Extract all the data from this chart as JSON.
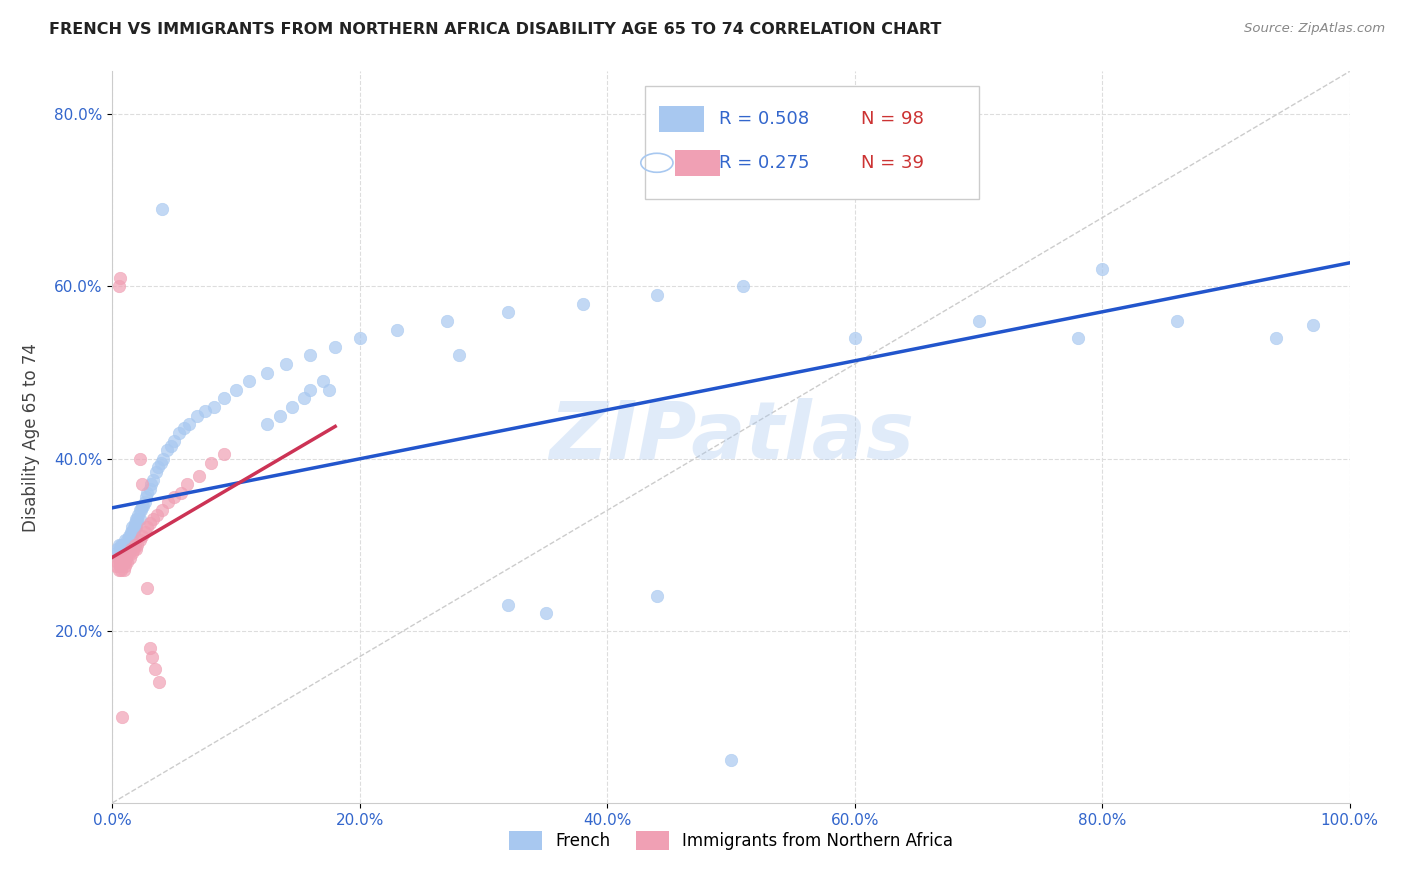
{
  "title": "FRENCH VS IMMIGRANTS FROM NORTHERN AFRICA DISABILITY AGE 65 TO 74 CORRELATION CHART",
  "source": "Source: ZipAtlas.com",
  "ylabel": "Disability Age 65 to 74",
  "xlim": [
    0,
    1.0
  ],
  "ylim": [
    0,
    0.85
  ],
  "xticks": [
    0.0,
    0.2,
    0.4,
    0.6,
    0.8,
    1.0
  ],
  "xticklabels": [
    "0.0%",
    "20.0%",
    "40.0%",
    "60.0%",
    "80.0%",
    "100.0%"
  ],
  "yticks": [
    0.2,
    0.4,
    0.6,
    0.8
  ],
  "yticklabels": [
    "20.0%",
    "40.0%",
    "60.0%",
    "80.0%"
  ],
  "legend_labels": [
    "French",
    "Immigrants from Northern Africa"
  ],
  "R_french": 0.508,
  "N_french": 98,
  "R_immig": 0.275,
  "N_immig": 39,
  "french_color": "#a8c8f0",
  "immig_color": "#f0a0b4",
  "french_line_color": "#2255cc",
  "immig_line_color": "#cc3355",
  "diagonal_color": "#cccccc",
  "background_color": "#ffffff",
  "grid_color": "#dddddd",
  "watermark": "ZIPatlas",
  "tick_color": "#3366cc",
  "french_x": [
    0.003,
    0.004,
    0.005,
    0.005,
    0.006,
    0.006,
    0.006,
    0.007,
    0.007,
    0.007,
    0.007,
    0.008,
    0.008,
    0.008,
    0.008,
    0.009,
    0.009,
    0.009,
    0.009,
    0.009,
    0.01,
    0.01,
    0.01,
    0.01,
    0.01,
    0.011,
    0.011,
    0.011,
    0.011,
    0.012,
    0.012,
    0.012,
    0.012,
    0.013,
    0.013,
    0.013,
    0.014,
    0.014,
    0.014,
    0.015,
    0.015,
    0.015,
    0.016,
    0.016,
    0.016,
    0.017,
    0.017,
    0.018,
    0.018,
    0.019,
    0.019,
    0.02,
    0.02,
    0.021,
    0.022,
    0.022,
    0.023,
    0.024,
    0.025,
    0.026,
    0.027,
    0.028,
    0.03,
    0.031,
    0.033,
    0.035,
    0.037,
    0.039,
    0.041,
    0.044,
    0.047,
    0.05,
    0.054,
    0.058,
    0.062,
    0.068,
    0.075,
    0.082,
    0.09,
    0.1,
    0.11,
    0.125,
    0.14,
    0.16,
    0.18,
    0.2,
    0.23,
    0.27,
    0.32,
    0.38,
    0.44,
    0.51,
    0.6,
    0.7,
    0.78,
    0.86,
    0.94,
    0.97
  ],
  "french_y": [
    0.29,
    0.295,
    0.285,
    0.3,
    0.28,
    0.275,
    0.295,
    0.285,
    0.29,
    0.3,
    0.295,
    0.285,
    0.29,
    0.3,
    0.295,
    0.28,
    0.29,
    0.295,
    0.3,
    0.285,
    0.285,
    0.29,
    0.295,
    0.3,
    0.305,
    0.29,
    0.295,
    0.3,
    0.285,
    0.295,
    0.3,
    0.305,
    0.29,
    0.3,
    0.305,
    0.31,
    0.3,
    0.31,
    0.295,
    0.305,
    0.31,
    0.315,
    0.31,
    0.315,
    0.32,
    0.315,
    0.32,
    0.32,
    0.325,
    0.32,
    0.33,
    0.325,
    0.33,
    0.335,
    0.33,
    0.34,
    0.34,
    0.345,
    0.345,
    0.35,
    0.355,
    0.36,
    0.365,
    0.37,
    0.375,
    0.385,
    0.39,
    0.395,
    0.4,
    0.41,
    0.415,
    0.42,
    0.43,
    0.435,
    0.44,
    0.45,
    0.455,
    0.46,
    0.47,
    0.48,
    0.49,
    0.5,
    0.51,
    0.52,
    0.53,
    0.54,
    0.55,
    0.56,
    0.57,
    0.58,
    0.59,
    0.6,
    0.54,
    0.56,
    0.54,
    0.56,
    0.54,
    0.555
  ],
  "french_y_outliers": [
    0.69,
    0.62,
    0.52,
    0.49,
    0.48,
    0.48,
    0.47,
    0.46,
    0.45,
    0.44,
    0.23,
    0.22,
    0.24,
    0.05
  ],
  "french_x_outliers": [
    0.04,
    0.8,
    0.28,
    0.17,
    0.16,
    0.175,
    0.155,
    0.145,
    0.135,
    0.125,
    0.32,
    0.35,
    0.44,
    0.5
  ],
  "immig_x": [
    0.003,
    0.004,
    0.005,
    0.005,
    0.006,
    0.006,
    0.007,
    0.007,
    0.008,
    0.008,
    0.009,
    0.009,
    0.01,
    0.01,
    0.011,
    0.012,
    0.013,
    0.014,
    0.015,
    0.016,
    0.017,
    0.018,
    0.019,
    0.02,
    0.022,
    0.024,
    0.026,
    0.028,
    0.03,
    0.033,
    0.036,
    0.04,
    0.045,
    0.05,
    0.055,
    0.06,
    0.07,
    0.08,
    0.09
  ],
  "immig_y": [
    0.275,
    0.28,
    0.27,
    0.285,
    0.275,
    0.28,
    0.27,
    0.285,
    0.275,
    0.28,
    0.27,
    0.285,
    0.275,
    0.28,
    0.285,
    0.28,
    0.29,
    0.285,
    0.295,
    0.29,
    0.295,
    0.3,
    0.295,
    0.3,
    0.305,
    0.31,
    0.315,
    0.32,
    0.325,
    0.33,
    0.335,
    0.34,
    0.35,
    0.355,
    0.36,
    0.37,
    0.38,
    0.395,
    0.405
  ],
  "immig_y_outliers": [
    0.6,
    0.61,
    0.4,
    0.37,
    0.25,
    0.18,
    0.17,
    0.155,
    0.14,
    0.1
  ],
  "immig_x_outliers": [
    0.005,
    0.006,
    0.022,
    0.024,
    0.028,
    0.03,
    0.032,
    0.034,
    0.038,
    0.008
  ]
}
